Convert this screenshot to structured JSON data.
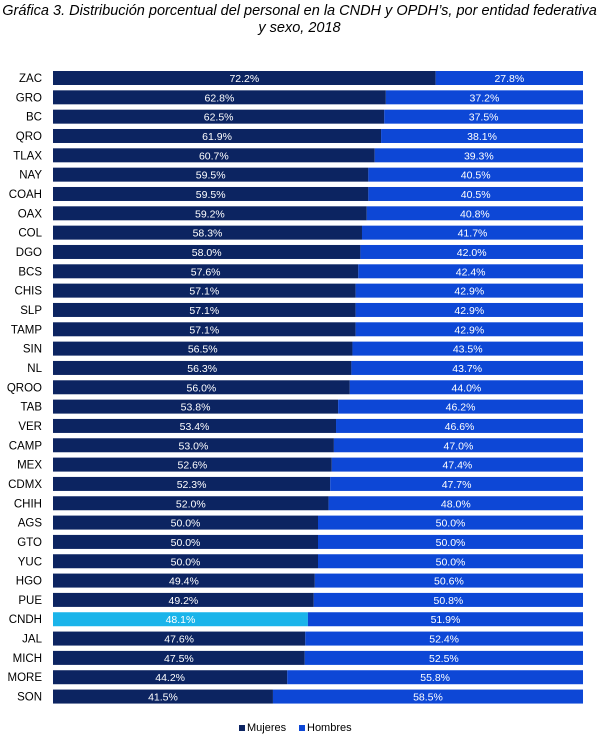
{
  "chart_data": {
    "type": "bar",
    "orientation": "horizontal",
    "stacked": true,
    "title": "Gráfica 3. Distribución porcentual del personal en la CNDH y OPDH’s, por entidad federativa y sexo, 2018",
    "categories": [
      "ZAC",
      "GRO",
      "BC",
      "QRO",
      "TLAX",
      "NAY",
      "COAH",
      "OAX",
      "COL",
      "DGO",
      "BCS",
      "CHIS",
      "SLP",
      "TAMP",
      "SIN",
      "NL",
      "QROO",
      "TAB",
      "VER",
      "CAMP",
      "MEX",
      "CDMX",
      "CHIH",
      "AGS",
      "GTO",
      "YUC",
      "HGO",
      "PUE",
      "CNDH",
      "JAL",
      "MICH",
      "MORE",
      "SON"
    ],
    "series": [
      {
        "name": "Mujeres",
        "color": "#0c2461",
        "values": [
          72.2,
          62.8,
          62.5,
          61.9,
          60.7,
          59.5,
          59.5,
          59.2,
          58.3,
          58.0,
          57.6,
          57.1,
          57.1,
          57.1,
          56.5,
          56.3,
          56.0,
          53.8,
          53.4,
          53.0,
          52.6,
          52.3,
          52.0,
          50.0,
          50.0,
          50.0,
          49.4,
          49.2,
          48.1,
          47.6,
          47.5,
          44.2,
          41.5
        ],
        "labels": [
          "72.2%",
          "62.8%",
          "62.5%",
          "61.9%",
          "60.7%",
          "59.5%",
          "59.5%",
          "59.2%",
          "58.3%",
          "58.0%",
          "57.6%",
          "57.1%",
          "57.1%",
          "57.1%",
          "56.5%",
          "56.3%",
          "56.0%",
          "53.8%",
          "53.4%",
          "53.0%",
          "52.6%",
          "52.3%",
          "52.0%",
          "50.0%",
          "50.0%",
          "50.0%",
          "49.4%",
          "49.2%",
          "48.1%",
          "47.6%",
          "47.5%",
          "44.2%",
          "41.5%"
        ]
      },
      {
        "name": "Hombres",
        "color": "#0d47d6",
        "values": [
          27.8,
          37.2,
          37.5,
          38.1,
          39.3,
          40.5,
          40.5,
          40.8,
          41.7,
          42.0,
          42.4,
          42.9,
          42.9,
          42.9,
          43.5,
          43.7,
          44.0,
          46.2,
          46.6,
          47.0,
          47.4,
          47.7,
          48.0,
          50.0,
          50.0,
          50.0,
          50.6,
          50.8,
          51.9,
          52.4,
          52.5,
          55.8,
          58.5
        ],
        "labels": [
          "27.8%",
          "37.2%",
          "37.5%",
          "38.1%",
          "39.3%",
          "40.5%",
          "40.5%",
          "40.8%",
          "41.7%",
          "42.0%",
          "42.4%",
          "42.9%",
          "42.9%",
          "42.9%",
          "43.5%",
          "43.7%",
          "44.0%",
          "46.2%",
          "46.6%",
          "47.0%",
          "47.4%",
          "47.7%",
          "48.0%",
          "50.0%",
          "50.0%",
          "50.0%",
          "50.6%",
          "50.8%",
          "51.9%",
          "52.4%",
          "52.5%",
          "55.8%",
          "58.5%"
        ]
      }
    ],
    "highlight": {
      "category": "CNDH",
      "color": "#1ab4ea"
    },
    "xlim": [
      0,
      100
    ],
    "grid": false,
    "legend_position": "bottom"
  }
}
